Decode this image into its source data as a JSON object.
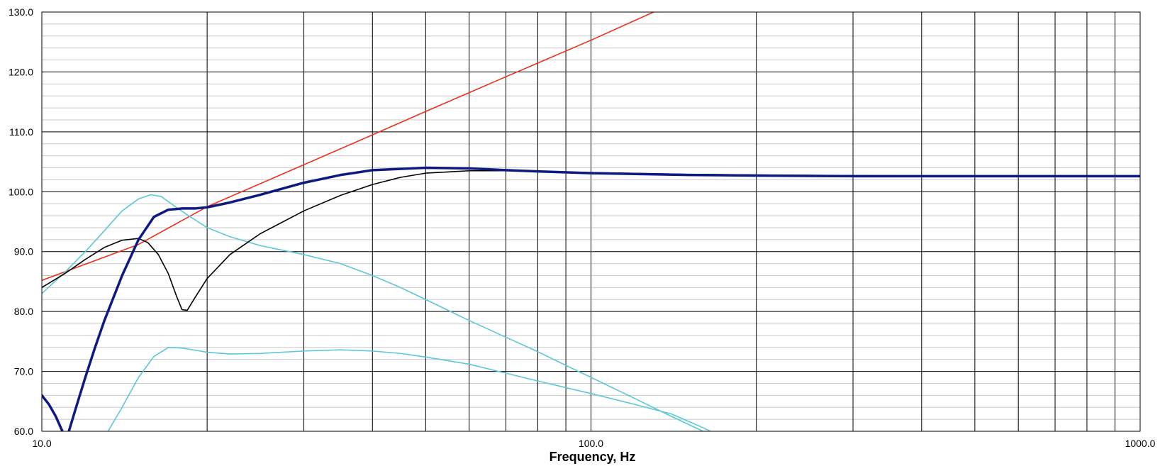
{
  "chart_data": {
    "type": "line",
    "title": "",
    "xlabel": "Frequency, Hz",
    "ylabel": "",
    "x_scale": "log",
    "xlim": [
      10,
      1000
    ],
    "ylim": [
      60,
      130
    ],
    "x_major_ticks": [
      10,
      100,
      1000
    ],
    "x_tick_labels": [
      "10.0",
      "100.0",
      "1000.0"
    ],
    "y_major_ticks": [
      60,
      70,
      80,
      90,
      100,
      110,
      120,
      130
    ],
    "y_tick_labels": [
      "60.0",
      "70.0",
      "80.0",
      "90.0",
      "100.0",
      "110.0",
      "120.0",
      "130.0"
    ],
    "y_minor_step": 2,
    "grid": true,
    "legend": "none",
    "series": [
      {
        "color": "#e8321c",
        "width": 1.6,
        "points": [
          [
            10,
            85.2
          ],
          [
            15,
            91.2
          ],
          [
            20,
            97.5
          ],
          [
            30,
            104.5
          ],
          [
            40,
            109.5
          ],
          [
            50,
            113.4
          ],
          [
            70,
            119.2
          ],
          [
            100,
            125.3
          ],
          [
            130,
            130
          ]
        ]
      },
      {
        "color": "#5cc8d6",
        "width": 1.6,
        "points": [
          [
            10,
            83
          ],
          [
            11,
            86.5
          ],
          [
            12,
            90
          ],
          [
            13,
            93.5
          ],
          [
            14,
            96.8
          ],
          [
            15,
            98.8
          ],
          [
            15.8,
            99.5
          ],
          [
            16.5,
            99.2
          ],
          [
            17.5,
            97.5
          ],
          [
            18.5,
            96
          ],
          [
            20,
            94
          ],
          [
            22,
            92.5
          ],
          [
            25,
            91
          ],
          [
            30,
            89.5
          ],
          [
            35,
            88
          ],
          [
            40,
            86
          ],
          [
            45,
            84
          ],
          [
            50,
            82
          ],
          [
            60,
            78.5
          ],
          [
            70,
            75.7
          ],
          [
            80,
            73.3
          ],
          [
            90,
            71
          ],
          [
            100,
            69
          ],
          [
            120,
            65.5
          ],
          [
            140,
            62.5
          ],
          [
            160,
            60
          ]
        ]
      },
      {
        "color": "#5cc8d6",
        "width": 1.6,
        "points": [
          [
            13.2,
            60
          ],
          [
            14,
            64
          ],
          [
            15,
            69
          ],
          [
            16,
            72.5
          ],
          [
            17,
            74
          ],
          [
            18,
            73.9
          ],
          [
            20,
            73.2
          ],
          [
            22,
            72.9
          ],
          [
            25,
            73
          ],
          [
            30,
            73.4
          ],
          [
            35,
            73.6
          ],
          [
            40,
            73.4
          ],
          [
            45,
            73
          ],
          [
            50,
            72.4
          ],
          [
            60,
            71.2
          ],
          [
            70,
            69.7
          ],
          [
            80,
            68.4
          ],
          [
            100,
            66.3
          ],
          [
            120,
            64.5
          ],
          [
            140,
            62.9
          ],
          [
            160,
            60.6
          ],
          [
            165,
            60
          ]
        ]
      },
      {
        "color": "#000000",
        "width": 1.6,
        "points": [
          [
            10,
            84
          ],
          [
            11,
            86.3
          ],
          [
            12,
            88.7
          ],
          [
            13,
            90.7
          ],
          [
            14,
            91.9
          ],
          [
            15,
            92.2
          ],
          [
            15.6,
            91.5
          ],
          [
            16.3,
            89.5
          ],
          [
            17,
            86.3
          ],
          [
            17.6,
            82.5
          ],
          [
            18,
            80.3
          ],
          [
            18.4,
            80.2
          ],
          [
            19,
            82.3
          ],
          [
            20,
            85.5
          ],
          [
            22,
            89.5
          ],
          [
            25,
            93
          ],
          [
            30,
            96.8
          ],
          [
            35,
            99.4
          ],
          [
            40,
            101.2
          ],
          [
            45,
            102.4
          ],
          [
            50,
            103.1
          ],
          [
            60,
            103.5
          ],
          [
            70,
            103.5
          ],
          [
            80,
            103.4
          ],
          [
            100,
            103.2
          ],
          [
            150,
            102.9
          ],
          [
            200,
            102.8
          ],
          [
            300,
            102.7
          ],
          [
            500,
            102.6
          ],
          [
            1000,
            102.6
          ]
        ]
      },
      {
        "color": "#0d1a80",
        "width": 3.5,
        "points": [
          [
            10,
            66
          ],
          [
            10.3,
            64.5
          ],
          [
            10.6,
            62.5
          ],
          [
            10.9,
            60
          ]
        ]
      },
      {
        "color": "#0d1a80",
        "width": 3.5,
        "points": [
          [
            11.2,
            60
          ],
          [
            11.5,
            63.5
          ],
          [
            12,
            69
          ],
          [
            12.5,
            74
          ],
          [
            13,
            78.5
          ],
          [
            14,
            86
          ],
          [
            15,
            92
          ],
          [
            16,
            95.8
          ],
          [
            17,
            97
          ],
          [
            18,
            97.2
          ],
          [
            19,
            97.2
          ],
          [
            20,
            97.4
          ],
          [
            22,
            98.2
          ],
          [
            25,
            99.5
          ],
          [
            30,
            101.5
          ],
          [
            35,
            102.8
          ],
          [
            40,
            103.6
          ],
          [
            50,
            104
          ],
          [
            60,
            103.9
          ],
          [
            70,
            103.6
          ],
          [
            80,
            103.4
          ],
          [
            100,
            103.1
          ],
          [
            150,
            102.8
          ],
          [
            200,
            102.7
          ],
          [
            300,
            102.6
          ],
          [
            500,
            102.6
          ],
          [
            1000,
            102.6
          ]
        ]
      }
    ]
  }
}
